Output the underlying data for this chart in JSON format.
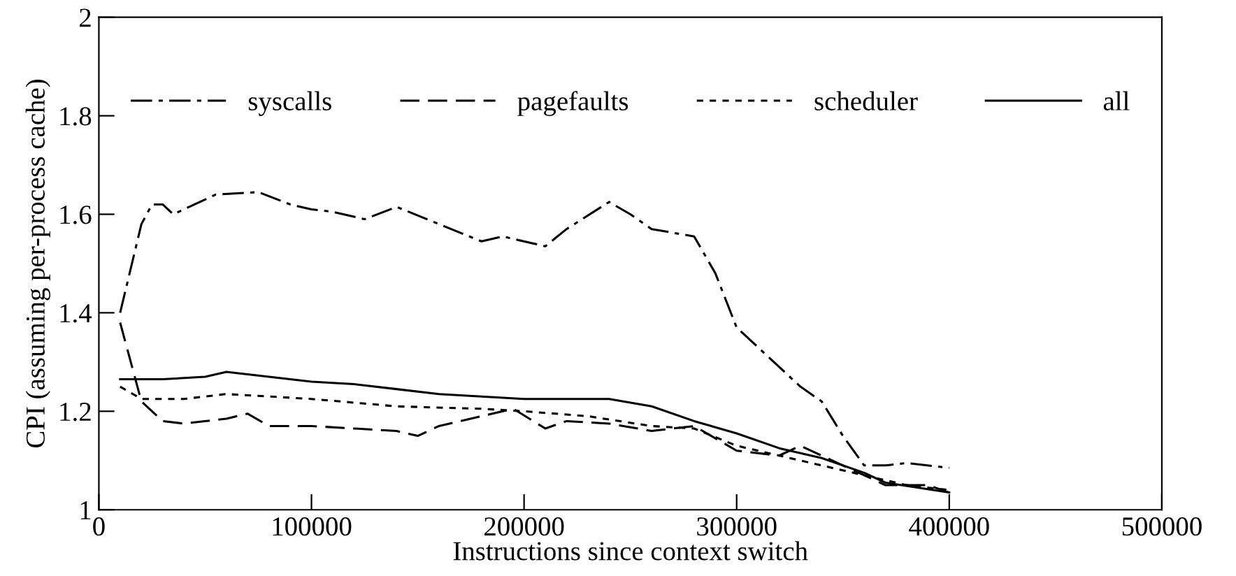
{
  "chart_data": {
    "type": "line",
    "xlabel": "Instructions since context switch",
    "ylabel": "CPI (assuming per-process cache)",
    "xlim": [
      0,
      500000
    ],
    "ylim": [
      1,
      2
    ],
    "xticks": [
      0,
      100000,
      200000,
      300000,
      400000,
      500000
    ],
    "yticks": [
      1,
      1.2,
      1.4,
      1.6,
      1.8,
      2
    ],
    "legend": "top",
    "grid": false,
    "series": [
      {
        "name": "syscalls",
        "color": "#000000",
        "line_style": "dashdot",
        "x": [
          10000,
          20000,
          25000,
          30000,
          35000,
          45000,
          55000,
          75000,
          90000,
          100000,
          110000,
          125000,
          140000,
          160000,
          180000,
          190000,
          210000,
          220000,
          240000,
          250000,
          260000,
          280000,
          290000,
          300000,
          310000,
          320000,
          330000,
          340000,
          350000,
          360000,
          370000,
          380000,
          400000
        ],
        "values": [
          1.4,
          1.58,
          1.62,
          1.62,
          1.6,
          1.62,
          1.64,
          1.645,
          1.62,
          1.61,
          1.605,
          1.59,
          1.615,
          1.58,
          1.545,
          1.555,
          1.535,
          1.57,
          1.625,
          1.6,
          1.57,
          1.555,
          1.48,
          1.37,
          1.33,
          1.29,
          1.25,
          1.22,
          1.15,
          1.09,
          1.09,
          1.095,
          1.085
        ]
      },
      {
        "name": "pagefaults",
        "color": "#000000",
        "line_style": "dashed",
        "x": [
          10000,
          20000,
          30000,
          40000,
          60000,
          70000,
          80000,
          100000,
          120000,
          140000,
          150000,
          160000,
          180000,
          195000,
          210000,
          220000,
          240000,
          260000,
          280000,
          300000,
          320000,
          330000,
          345000,
          360000,
          370000,
          390000,
          400000
        ],
        "values": [
          1.38,
          1.22,
          1.18,
          1.175,
          1.185,
          1.195,
          1.17,
          1.17,
          1.165,
          1.16,
          1.15,
          1.17,
          1.19,
          1.205,
          1.165,
          1.18,
          1.175,
          1.16,
          1.17,
          1.12,
          1.11,
          1.13,
          1.1,
          1.07,
          1.05,
          1.05,
          1.035
        ]
      },
      {
        "name": "scheduler",
        "color": "#000000",
        "line_style": "dotted",
        "x": [
          10000,
          20000,
          40000,
          60000,
          80000,
          100000,
          140000,
          180000,
          200000,
          230000,
          260000,
          280000,
          300000,
          330000,
          360000,
          380000,
          400000
        ],
        "values": [
          1.25,
          1.225,
          1.225,
          1.235,
          1.23,
          1.225,
          1.21,
          1.205,
          1.2,
          1.19,
          1.17,
          1.165,
          1.13,
          1.1,
          1.07,
          1.05,
          1.04
        ]
      },
      {
        "name": "all",
        "color": "#000000",
        "line_style": "solid",
        "x": [
          10000,
          30000,
          50000,
          60000,
          80000,
          100000,
          120000,
          140000,
          160000,
          200000,
          240000,
          260000,
          280000,
          300000,
          320000,
          340000,
          360000,
          370000,
          400000
        ],
        "values": [
          1.265,
          1.265,
          1.27,
          1.28,
          1.27,
          1.26,
          1.255,
          1.245,
          1.235,
          1.225,
          1.225,
          1.21,
          1.18,
          1.155,
          1.125,
          1.105,
          1.075,
          1.055,
          1.035
        ]
      }
    ]
  }
}
